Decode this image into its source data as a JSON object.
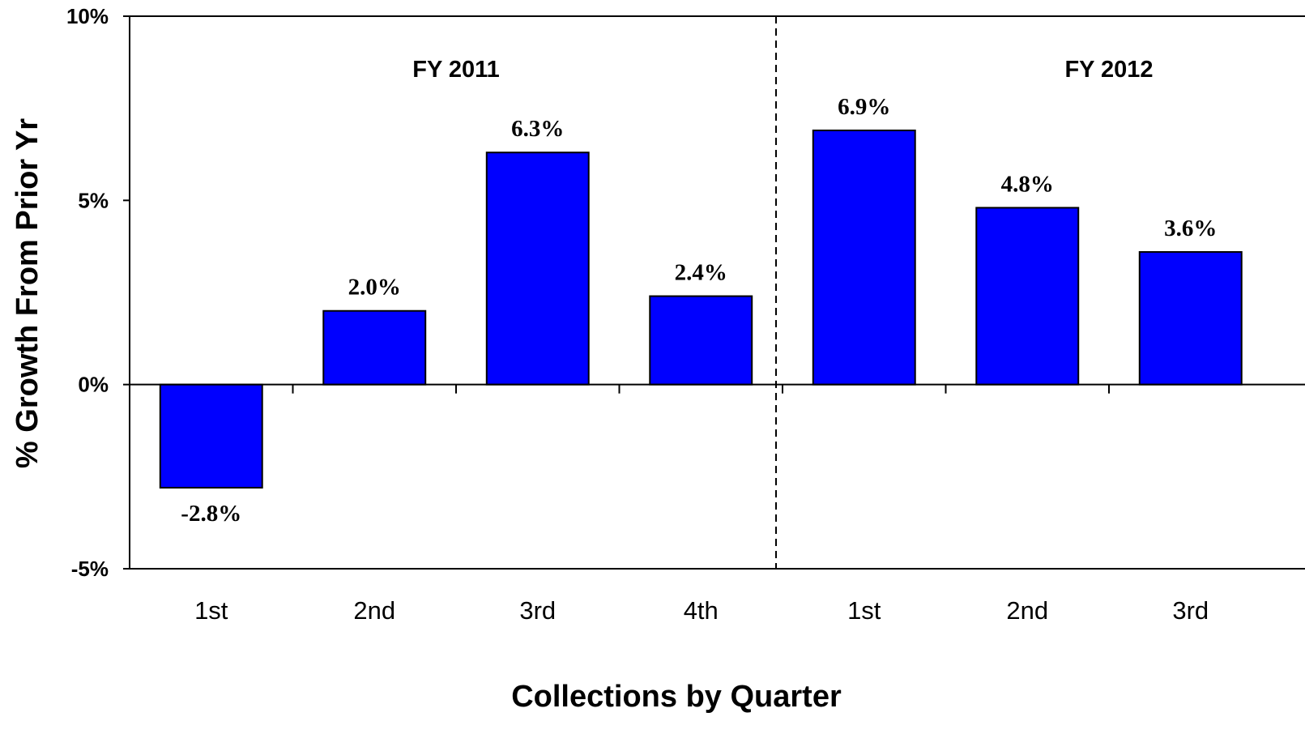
{
  "chart_data": {
    "type": "bar",
    "categories": [
      "1st",
      "2nd",
      "3rd",
      "4th",
      "1st",
      "2nd",
      "3rd"
    ],
    "values": [
      -2.8,
      2.0,
      6.3,
      2.4,
      6.9,
      4.8,
      3.6
    ],
    "data_labels": [
      "-2.8%",
      "2.0%",
      "6.3%",
      "2.4%",
      "6.9%",
      "4.8%",
      "3.6%"
    ],
    "groups": [
      {
        "label": "FY 2011",
        "count": 4
      },
      {
        "label": "FY 2012",
        "count": 3
      }
    ],
    "xlabel": "Collections by Quarter",
    "ylabel": "% Growth From Prior Yr",
    "ylim": [
      -5,
      10
    ],
    "yticks": [
      -5,
      0,
      5,
      10
    ],
    "ytick_labels": [
      "-5%",
      "0%",
      "5%",
      "10%"
    ],
    "bar_color": "#0000FF",
    "grid": false,
    "legend": "none"
  }
}
